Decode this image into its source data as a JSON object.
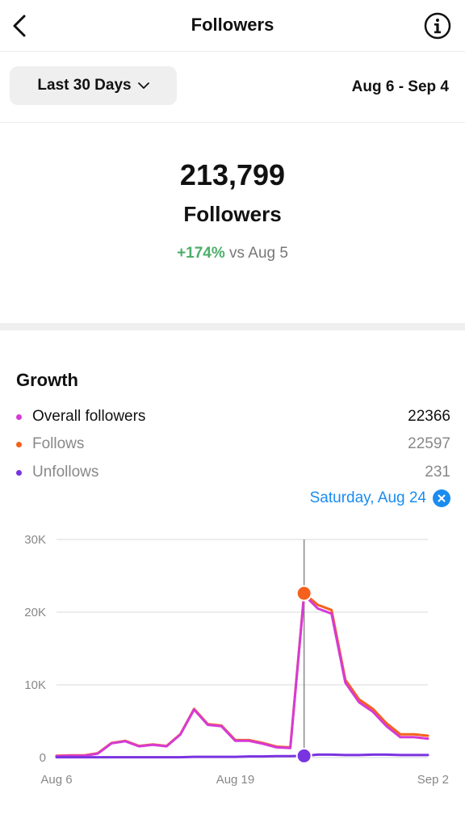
{
  "header": {
    "title": "Followers",
    "back_icon": "chevron-left-icon",
    "info_icon": "info-icon"
  },
  "filter": {
    "range_label": "Last 30 Days",
    "range_icon": "chevron-down-icon",
    "date_range": "Aug 6 - Sep 4"
  },
  "summary": {
    "count": "213,799",
    "label": "Followers",
    "change": "+174%",
    "change_suffix": "vs Aug 5"
  },
  "growth": {
    "title": "Growth",
    "legend": [
      {
        "name": "Overall followers",
        "value": "22366",
        "color": "#d63ad6"
      },
      {
        "name": "Follows",
        "value": "22597",
        "color": "#f5611c"
      },
      {
        "name": "Unfollows",
        "value": "231",
        "color": "#7a33e0"
      }
    ],
    "selected_date": "Saturday, Aug 24",
    "accent_color": "#1a8cf0"
  },
  "chart_data": {
    "type": "line",
    "x": [
      "Aug 6",
      "Aug 7",
      "Aug 8",
      "Aug 9",
      "Aug 10",
      "Aug 11",
      "Aug 12",
      "Aug 13",
      "Aug 14",
      "Aug 15",
      "Aug 16",
      "Aug 17",
      "Aug 18",
      "Aug 19",
      "Aug 20",
      "Aug 21",
      "Aug 22",
      "Aug 23",
      "Aug 24",
      "Aug 25",
      "Aug 26",
      "Aug 27",
      "Aug 28",
      "Aug 29",
      "Aug 30",
      "Aug 31",
      "Sep 1",
      "Sep 2"
    ],
    "xticks": [
      "Aug 6",
      "Aug 19",
      "Sep 2"
    ],
    "yticks": [
      "0",
      "10K",
      "20K",
      "30K"
    ],
    "ylim": [
      0,
      30000
    ],
    "series": [
      {
        "name": "Follows",
        "color": "#f5611c",
        "values": [
          250,
          300,
          300,
          600,
          2000,
          2300,
          1600,
          1800,
          1600,
          3200,
          6700,
          4600,
          4400,
          2400,
          2400,
          2000,
          1500,
          1400,
          22597,
          21000,
          20300,
          10700,
          8000,
          6700,
          4700,
          3200,
          3200,
          3000
        ]
      },
      {
        "name": "Overall followers",
        "color": "#d63ad6",
        "values": [
          200,
          250,
          250,
          550,
          1950,
          2250,
          1550,
          1750,
          1550,
          3150,
          6600,
          4500,
          4300,
          2300,
          2300,
          1900,
          1400,
          1300,
          22366,
          20500,
          19800,
          10300,
          7600,
          6300,
          4300,
          2800,
          2800,
          2600
        ]
      },
      {
        "name": "Unfollows",
        "color": "#7a33e0",
        "values": [
          50,
          50,
          50,
          50,
          50,
          50,
          50,
          50,
          50,
          50,
          100,
          100,
          100,
          100,
          150,
          150,
          200,
          200,
          231,
          400,
          400,
          350,
          350,
          400,
          400,
          350,
          350,
          350
        ]
      }
    ],
    "highlight_index": 18,
    "grid": true
  }
}
